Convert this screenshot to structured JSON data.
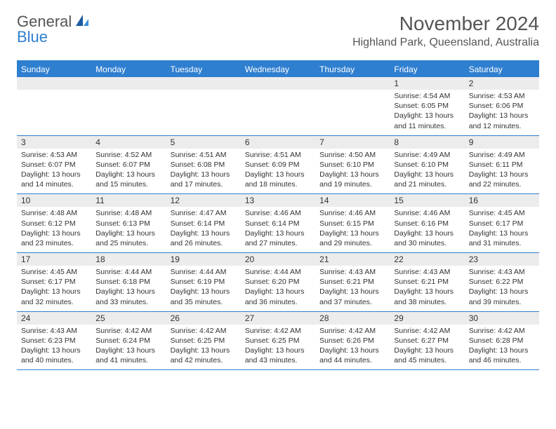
{
  "logo": {
    "text_general": "General",
    "text_blue": "Blue",
    "icon_color_dark": "#1a5a9e",
    "icon_color_light": "#3a8fdc"
  },
  "title": "November 2024",
  "location": "Highland Park, Queensland, Australia",
  "colors": {
    "header_bg": "#2f7fd0",
    "header_text": "#ffffff",
    "daynum_bg": "#ececec",
    "border": "#2f7fd0",
    "body_text": "#333333",
    "title_text": "#555555"
  },
  "day_names": [
    "Sunday",
    "Monday",
    "Tuesday",
    "Wednesday",
    "Thursday",
    "Friday",
    "Saturday"
  ],
  "weeks": [
    [
      {
        "num": "",
        "sunrise": "",
        "sunset": "",
        "daylight": ""
      },
      {
        "num": "",
        "sunrise": "",
        "sunset": "",
        "daylight": ""
      },
      {
        "num": "",
        "sunrise": "",
        "sunset": "",
        "daylight": ""
      },
      {
        "num": "",
        "sunrise": "",
        "sunset": "",
        "daylight": ""
      },
      {
        "num": "",
        "sunrise": "",
        "sunset": "",
        "daylight": ""
      },
      {
        "num": "1",
        "sunrise": "Sunrise: 4:54 AM",
        "sunset": "Sunset: 6:05 PM",
        "daylight": "Daylight: 13 hours and 11 minutes."
      },
      {
        "num": "2",
        "sunrise": "Sunrise: 4:53 AM",
        "sunset": "Sunset: 6:06 PM",
        "daylight": "Daylight: 13 hours and 12 minutes."
      }
    ],
    [
      {
        "num": "3",
        "sunrise": "Sunrise: 4:53 AM",
        "sunset": "Sunset: 6:07 PM",
        "daylight": "Daylight: 13 hours and 14 minutes."
      },
      {
        "num": "4",
        "sunrise": "Sunrise: 4:52 AM",
        "sunset": "Sunset: 6:07 PM",
        "daylight": "Daylight: 13 hours and 15 minutes."
      },
      {
        "num": "5",
        "sunrise": "Sunrise: 4:51 AM",
        "sunset": "Sunset: 6:08 PM",
        "daylight": "Daylight: 13 hours and 17 minutes."
      },
      {
        "num": "6",
        "sunrise": "Sunrise: 4:51 AM",
        "sunset": "Sunset: 6:09 PM",
        "daylight": "Daylight: 13 hours and 18 minutes."
      },
      {
        "num": "7",
        "sunrise": "Sunrise: 4:50 AM",
        "sunset": "Sunset: 6:10 PM",
        "daylight": "Daylight: 13 hours and 19 minutes."
      },
      {
        "num": "8",
        "sunrise": "Sunrise: 4:49 AM",
        "sunset": "Sunset: 6:10 PM",
        "daylight": "Daylight: 13 hours and 21 minutes."
      },
      {
        "num": "9",
        "sunrise": "Sunrise: 4:49 AM",
        "sunset": "Sunset: 6:11 PM",
        "daylight": "Daylight: 13 hours and 22 minutes."
      }
    ],
    [
      {
        "num": "10",
        "sunrise": "Sunrise: 4:48 AM",
        "sunset": "Sunset: 6:12 PM",
        "daylight": "Daylight: 13 hours and 23 minutes."
      },
      {
        "num": "11",
        "sunrise": "Sunrise: 4:48 AM",
        "sunset": "Sunset: 6:13 PM",
        "daylight": "Daylight: 13 hours and 25 minutes."
      },
      {
        "num": "12",
        "sunrise": "Sunrise: 4:47 AM",
        "sunset": "Sunset: 6:14 PM",
        "daylight": "Daylight: 13 hours and 26 minutes."
      },
      {
        "num": "13",
        "sunrise": "Sunrise: 4:46 AM",
        "sunset": "Sunset: 6:14 PM",
        "daylight": "Daylight: 13 hours and 27 minutes."
      },
      {
        "num": "14",
        "sunrise": "Sunrise: 4:46 AM",
        "sunset": "Sunset: 6:15 PM",
        "daylight": "Daylight: 13 hours and 29 minutes."
      },
      {
        "num": "15",
        "sunrise": "Sunrise: 4:46 AM",
        "sunset": "Sunset: 6:16 PM",
        "daylight": "Daylight: 13 hours and 30 minutes."
      },
      {
        "num": "16",
        "sunrise": "Sunrise: 4:45 AM",
        "sunset": "Sunset: 6:17 PM",
        "daylight": "Daylight: 13 hours and 31 minutes."
      }
    ],
    [
      {
        "num": "17",
        "sunrise": "Sunrise: 4:45 AM",
        "sunset": "Sunset: 6:17 PM",
        "daylight": "Daylight: 13 hours and 32 minutes."
      },
      {
        "num": "18",
        "sunrise": "Sunrise: 4:44 AM",
        "sunset": "Sunset: 6:18 PM",
        "daylight": "Daylight: 13 hours and 33 minutes."
      },
      {
        "num": "19",
        "sunrise": "Sunrise: 4:44 AM",
        "sunset": "Sunset: 6:19 PM",
        "daylight": "Daylight: 13 hours and 35 minutes."
      },
      {
        "num": "20",
        "sunrise": "Sunrise: 4:44 AM",
        "sunset": "Sunset: 6:20 PM",
        "daylight": "Daylight: 13 hours and 36 minutes."
      },
      {
        "num": "21",
        "sunrise": "Sunrise: 4:43 AM",
        "sunset": "Sunset: 6:21 PM",
        "daylight": "Daylight: 13 hours and 37 minutes."
      },
      {
        "num": "22",
        "sunrise": "Sunrise: 4:43 AM",
        "sunset": "Sunset: 6:21 PM",
        "daylight": "Daylight: 13 hours and 38 minutes."
      },
      {
        "num": "23",
        "sunrise": "Sunrise: 4:43 AM",
        "sunset": "Sunset: 6:22 PM",
        "daylight": "Daylight: 13 hours and 39 minutes."
      }
    ],
    [
      {
        "num": "24",
        "sunrise": "Sunrise: 4:43 AM",
        "sunset": "Sunset: 6:23 PM",
        "daylight": "Daylight: 13 hours and 40 minutes."
      },
      {
        "num": "25",
        "sunrise": "Sunrise: 4:42 AM",
        "sunset": "Sunset: 6:24 PM",
        "daylight": "Daylight: 13 hours and 41 minutes."
      },
      {
        "num": "26",
        "sunrise": "Sunrise: 4:42 AM",
        "sunset": "Sunset: 6:25 PM",
        "daylight": "Daylight: 13 hours and 42 minutes."
      },
      {
        "num": "27",
        "sunrise": "Sunrise: 4:42 AM",
        "sunset": "Sunset: 6:25 PM",
        "daylight": "Daylight: 13 hours and 43 minutes."
      },
      {
        "num": "28",
        "sunrise": "Sunrise: 4:42 AM",
        "sunset": "Sunset: 6:26 PM",
        "daylight": "Daylight: 13 hours and 44 minutes."
      },
      {
        "num": "29",
        "sunrise": "Sunrise: 4:42 AM",
        "sunset": "Sunset: 6:27 PM",
        "daylight": "Daylight: 13 hours and 45 minutes."
      },
      {
        "num": "30",
        "sunrise": "Sunrise: 4:42 AM",
        "sunset": "Sunset: 6:28 PM",
        "daylight": "Daylight: 13 hours and 46 minutes."
      }
    ]
  ]
}
